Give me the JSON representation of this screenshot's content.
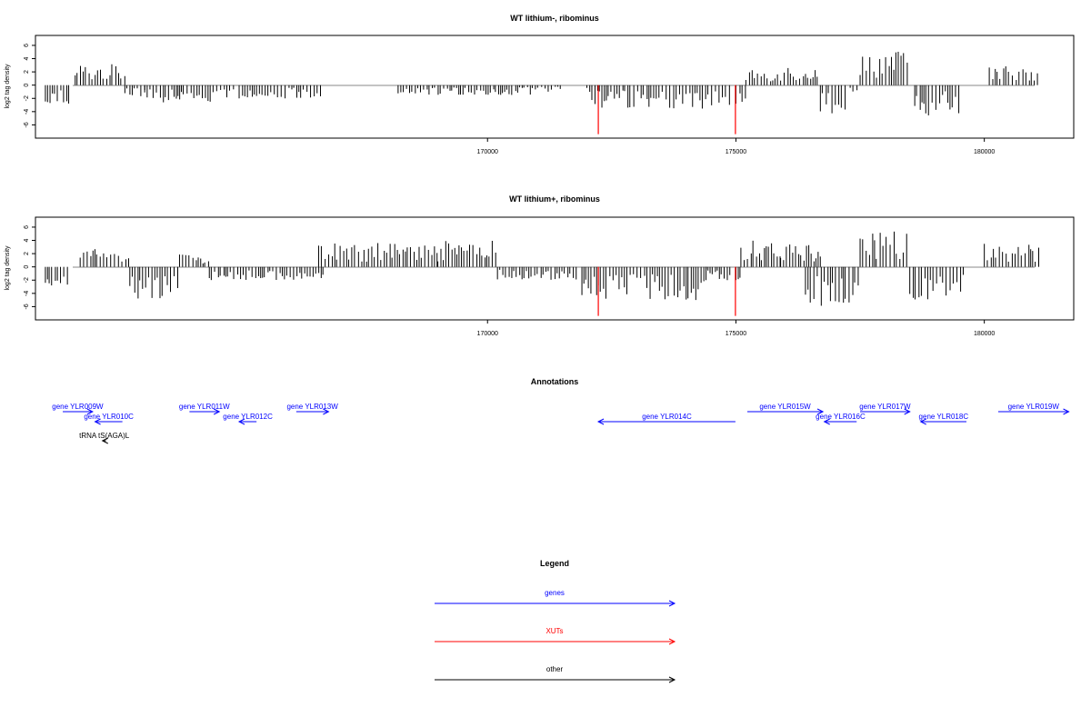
{
  "chart_data": [
    {
      "type": "bar",
      "title": "WT lithium-, ribominus",
      "ylabel": "log2 tag density",
      "xlabel": "",
      "xlim": [
        160900,
        181800
      ],
      "ylim": [
        -8,
        7.5
      ],
      "y_ticks": [
        "6",
        "4",
        "2",
        "0",
        "-2",
        "-4",
        "-6"
      ],
      "x_ticks": [
        {
          "value": 170000,
          "label": "170000"
        },
        {
          "value": 175000,
          "label": "175000"
        },
        {
          "value": 180000,
          "label": "180000"
        }
      ],
      "series": [
        {
          "color": "#000000",
          "values": [
            [
              161100,
              161600,
              -3.2
            ],
            [
              161700,
              162700,
              3.2
            ],
            [
              162700,
              163100,
              -2.2
            ],
            [
              163100,
              164900,
              -2.6
            ],
            [
              165000,
              166700,
              -2.0
            ],
            [
              168200,
              170900,
              -1.5
            ],
            [
              170900,
              171500,
              -1.0
            ],
            [
              172000,
              172100,
              -1.4
            ],
            [
              172100,
              174900,
              -3.6
            ],
            [
              175000,
              175200,
              -2.8
            ],
            [
              175200,
              175900,
              2.7
            ],
            [
              175900,
              176700,
              3.0
            ],
            [
              176700,
              177200,
              -4.5
            ],
            [
              177300,
              177500,
              -2.0
            ],
            [
              177500,
              178500,
              5.3
            ],
            [
              178600,
              179500,
              -4.6
            ],
            [
              180100,
              181100,
              3.0
            ]
          ]
        },
        {
          "color": "#ff0000",
          "values": [
            [
              172230,
              -7.4
            ],
            [
              174990,
              -7.4
            ]
          ]
        }
      ]
    },
    {
      "type": "bar",
      "title": "WT lithium+, ribominus",
      "ylabel": "log2 tag density",
      "xlabel": "",
      "xlim": [
        160900,
        181800
      ],
      "ylim": [
        -8,
        7.5
      ],
      "y_ticks": [
        "6",
        "4",
        "2",
        "0",
        "-2",
        "-4",
        "-6"
      ],
      "x_ticks": [
        {
          "value": 170000,
          "label": "170000"
        },
        {
          "value": 175000,
          "label": "175000"
        },
        {
          "value": 180000,
          "label": "180000"
        }
      ],
      "series": [
        {
          "color": "#000000",
          "values": [
            [
              161100,
              161600,
              -3.0
            ],
            [
              161800,
              162800,
              2.7
            ],
            [
              162800,
              163800,
              -4.8
            ],
            [
              163800,
              164400,
              2.0
            ],
            [
              164400,
              166700,
              -2.0
            ],
            [
              166600,
              169000,
              3.6
            ],
            [
              169000,
              170200,
              4.0
            ],
            [
              170200,
              171800,
              -2.0
            ],
            [
              171900,
              174400,
              -5.0
            ],
            [
              174400,
              174900,
              -2.0
            ],
            [
              175000,
              175100,
              -2.0
            ],
            [
              175100,
              175900,
              4.2
            ],
            [
              175900,
              176700,
              3.4
            ],
            [
              176400,
              177500,
              -6.2
            ],
            [
              177500,
              178500,
              5.6
            ],
            [
              178500,
              179600,
              -5.8
            ],
            [
              180000,
              181100,
              3.8
            ]
          ]
        },
        {
          "color": "#ff0000",
          "values": [
            [
              172230,
              -7.4
            ],
            [
              174990,
              -7.4
            ]
          ]
        }
      ]
    }
  ],
  "annotations": {
    "title": "Annotations",
    "xlim": [
      160900,
      181800
    ],
    "features": [
      {
        "label": "gene YLR009W",
        "start": 161450,
        "end": 162050,
        "strand": "+",
        "color": "#0000ff",
        "row": 0
      },
      {
        "label": "gene YLR010C",
        "start": 162100,
        "end": 162650,
        "strand": "-",
        "color": "#0000ff",
        "row": 1
      },
      {
        "label": "gene YLR011W",
        "start": 164000,
        "end": 164600,
        "strand": "+",
        "color": "#0000ff",
        "row": 0
      },
      {
        "label": "gene YLR012C",
        "start": 165000,
        "end": 165350,
        "strand": "-",
        "color": "#0000ff",
        "row": 1
      },
      {
        "label": "gene YLR013W",
        "start": 166150,
        "end": 166800,
        "strand": "+",
        "color": "#0000ff",
        "row": 0
      },
      {
        "label": "gene YLR014C",
        "start": 172230,
        "end": 174990,
        "strand": "-",
        "color": "#0000ff",
        "row": 1
      },
      {
        "label": "gene YLR015W",
        "start": 175230,
        "end": 176750,
        "strand": "+",
        "color": "#0000ff",
        "row": 0
      },
      {
        "label": "gene YLR016C",
        "start": 176780,
        "end": 177430,
        "strand": "-",
        "color": "#0000ff",
        "row": 1
      },
      {
        "label": "gene YLR017W",
        "start": 177500,
        "end": 178500,
        "strand": "+",
        "color": "#0000ff",
        "row": 0
      },
      {
        "label": "gene YLR018C",
        "start": 178720,
        "end": 179640,
        "strand": "-",
        "color": "#0000ff",
        "row": 1
      },
      {
        "label": "gene YLR019W",
        "start": 180280,
        "end": 181700,
        "strand": "+",
        "color": "#0000ff",
        "row": 0
      },
      {
        "label": "tRNA tS(AGA)L",
        "start": 162250,
        "end": 162320,
        "strand": "-",
        "color": "#000000",
        "row": 2
      }
    ]
  },
  "legend": {
    "title": "Legend",
    "items": [
      {
        "label": "genes",
        "color": "#0000ff"
      },
      {
        "label": "XUTs",
        "color": "#ff0000"
      },
      {
        "label": "other",
        "color": "#000000"
      }
    ]
  }
}
